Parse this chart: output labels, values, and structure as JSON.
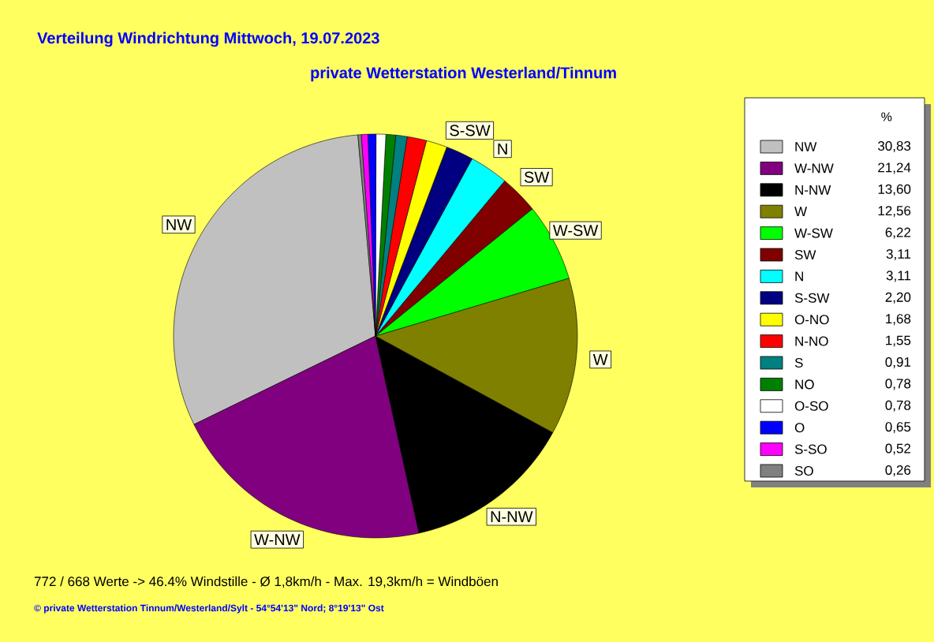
{
  "chart_data": {
    "type": "pie",
    "title": "Verteilung Windrichtung   Mittwoch, 19.07.2023",
    "subtitle": "private Wetterstation Westerland/Tinnum",
    "legend_title": "%",
    "legend": "right",
    "categories": [
      "NW",
      "W-NW",
      "N-NW",
      "W",
      "W-SW",
      "SW",
      "N",
      "S-SW",
      "O-NO",
      "N-NO",
      "S",
      "NO",
      "O-SO",
      "O",
      "S-SO",
      "SO"
    ],
    "values": [
      30.83,
      21.24,
      13.6,
      12.56,
      6.22,
      3.11,
      3.11,
      2.2,
      1.68,
      1.55,
      0.91,
      0.78,
      0.78,
      0.65,
      0.52,
      0.26
    ],
    "value_labels": [
      "30,83",
      "21,24",
      "13,60",
      "12,56",
      "6,22",
      "3,11",
      "3,11",
      "2,20",
      "1,68",
      "1,55",
      "0,91",
      "0,78",
      "0,78",
      "0,65",
      "0,52",
      "0,26"
    ],
    "colors": [
      "#c0c0c0",
      "#800080",
      "#000000",
      "#808000",
      "#00ff00",
      "#800000",
      "#00ffff",
      "#000080",
      "#ffff00",
      "#ff0000",
      "#008080",
      "#008000",
      "#ffffff",
      "#0000ff",
      "#ff00ff",
      "#808080"
    ],
    "annotations": [
      "772 / 668 Werte  -> 46.4% Windstille   -   Ø 1,8km/h  -  Max. 19,3km/h = Windböen",
      "© private Wetterstation Tinnum/Westerland/Sylt   -   54°54'13\" Nord; 8°19'13\" Ost"
    ]
  }
}
